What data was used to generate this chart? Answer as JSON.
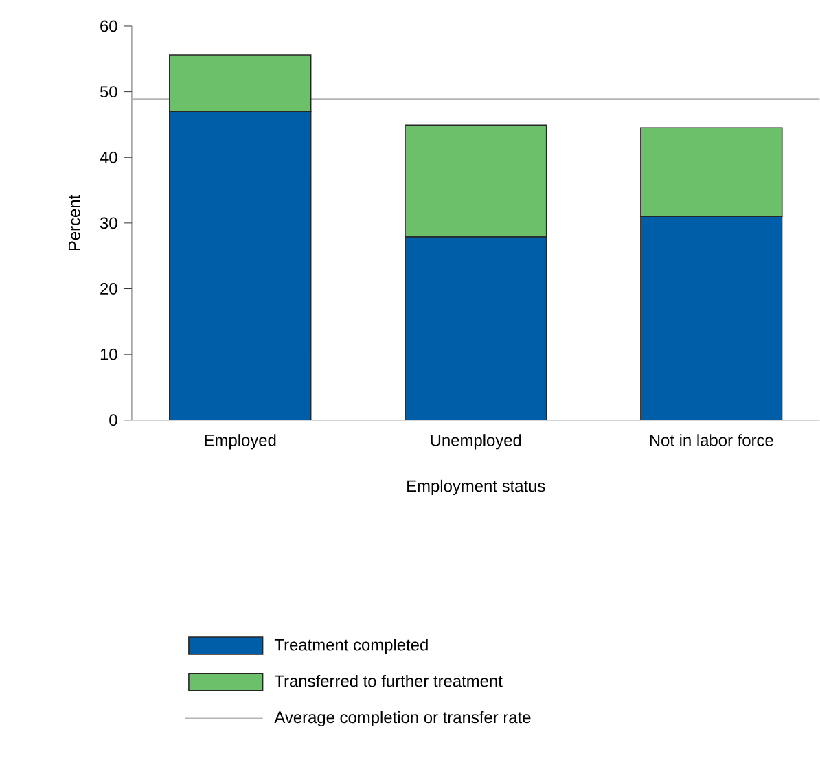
{
  "chart_data": {
    "type": "bar",
    "stacked": true,
    "xlabel": "Employment status",
    "ylabel": "Percent",
    "categories": [
      "Employed",
      "Unemployed",
      "Not in labor force"
    ],
    "series": [
      {
        "name": "Treatment completed",
        "color": "#005ea8",
        "values": [
          47.0,
          27.9,
          31.0
        ]
      },
      {
        "name": "Transferred to further treatment",
        "color": "#6cc06a",
        "values": [
          8.6,
          17.0,
          13.5
        ]
      }
    ],
    "ref_lines": [
      {
        "axis": "y",
        "value": 48.9,
        "label": "Average completion or transfer rate",
        "color": "#b4b4b4"
      }
    ],
    "ylim": [
      0,
      60
    ],
    "yticks": [
      0,
      10,
      20,
      30,
      40,
      50,
      60
    ],
    "legend": "bottom"
  }
}
